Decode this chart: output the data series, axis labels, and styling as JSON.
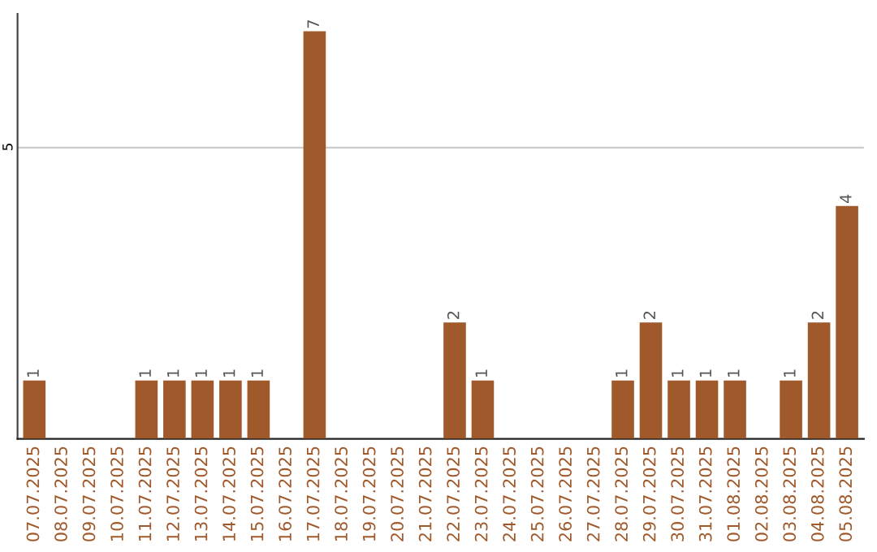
{
  "chart_data": {
    "type": "bar",
    "categories": [
      "07.07.2025",
      "08.07.2025",
      "09.07.2025",
      "10.07.2025",
      "11.07.2025",
      "12.07.2025",
      "13.07.2025",
      "14.07.2025",
      "15.07.2025",
      "16.07.2025",
      "17.07.2025",
      "18.07.2025",
      "19.07.2025",
      "20.07.2025",
      "21.07.2025",
      "22.07.2025",
      "23.07.2025",
      "24.07.2025",
      "25.07.2025",
      "26.07.2025",
      "27.07.2025",
      "28.07.2025",
      "29.07.2025",
      "30.07.2025",
      "31.07.2025",
      "01.08.2025",
      "02.08.2025",
      "03.08.2025",
      "04.08.2025",
      "05.08.2025"
    ],
    "values": [
      1,
      0,
      0,
      0,
      1,
      1,
      1,
      1,
      1,
      0,
      7,
      0,
      0,
      0,
      0,
      2,
      1,
      0,
      0,
      0,
      0,
      1,
      2,
      1,
      1,
      1,
      0,
      1,
      2,
      4
    ],
    "value_labels": [
      "1",
      null,
      null,
      null,
      "1",
      "1",
      "1",
      "1",
      "1",
      null,
      "7",
      null,
      null,
      null,
      null,
      "2",
      "1",
      null,
      null,
      null,
      null,
      "1",
      "2",
      "1",
      "1",
      "1",
      null,
      "1",
      "2",
      "4"
    ],
    "color": "#a0592a",
    "ylim": [
      0,
      7.3
    ],
    "yticks": [
      5
    ],
    "grid": "y"
  }
}
